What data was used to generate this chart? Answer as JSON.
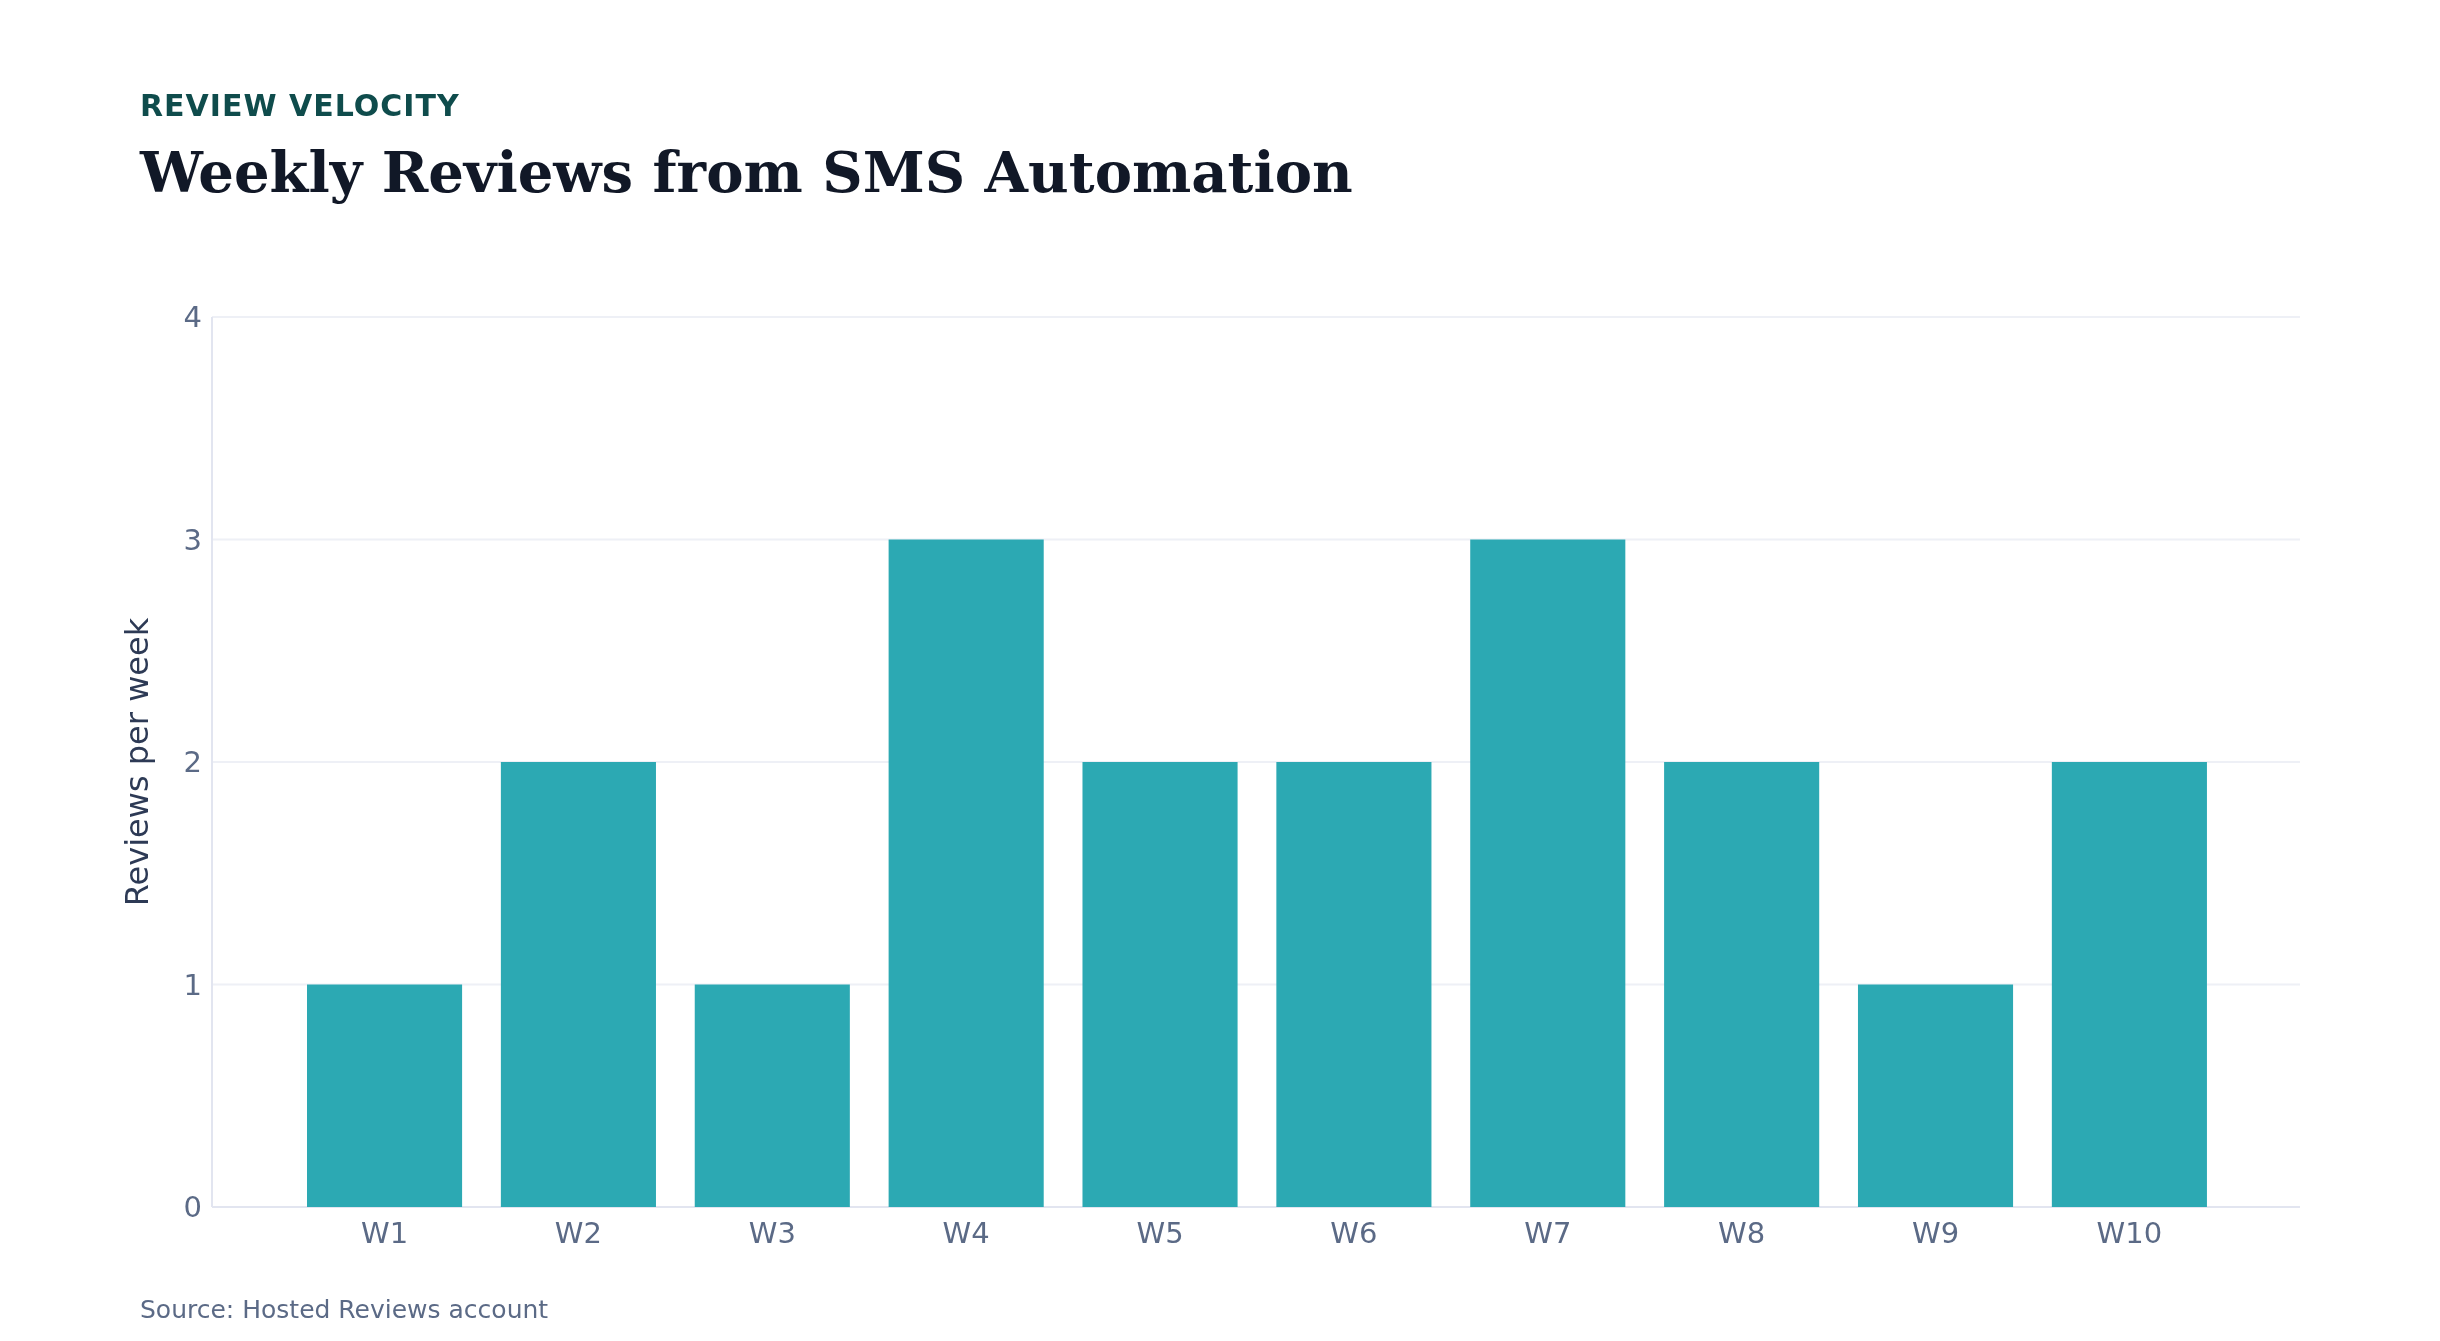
{
  "chart_data": {
    "type": "bar",
    "subtitle": "REVIEW VELOCITY",
    "title": "Weekly Reviews from SMS Automation",
    "ylabel": "Reviews per week",
    "categories": [
      "W1",
      "W2",
      "W3",
      "W4",
      "W5",
      "W6",
      "W7",
      "W8",
      "W9",
      "W10"
    ],
    "values": [
      1,
      2,
      1,
      3,
      2,
      2,
      3,
      2,
      1,
      2
    ],
    "color": "#2ca9b3",
    "ylim": [
      0,
      4
    ],
    "yticks": [
      0,
      1,
      2,
      3,
      4
    ],
    "grid": "y",
    "annotations": [
      "Source: Hosted Reviews account"
    ]
  }
}
